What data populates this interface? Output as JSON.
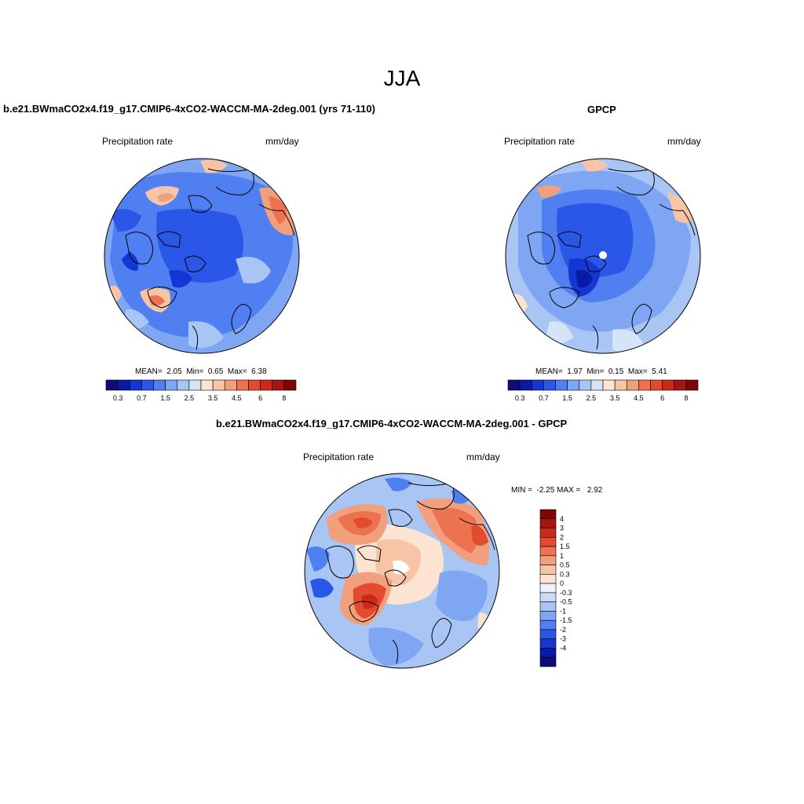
{
  "title": "JJA",
  "panels": [
    {
      "id": "model",
      "title": "b.e21.BWmaCO2x4.f19_g17.CMIP6-4xCO2-WACCM-MA-2deg.001 (yrs 71-110)",
      "left_label": "Precipitation rate",
      "right_label": "mm/day",
      "stats": {
        "mean_label": "MEAN=",
        "mean": "2.05",
        "min_label": "Min=",
        "min": "0.65",
        "max_label": "Max=",
        "max": "6.38"
      }
    },
    {
      "id": "obs",
      "title": "GPCP",
      "left_label": "Precipitation rate",
      "right_label": "mm/day",
      "stats": {
        "mean_label": "MEAN=",
        "mean": "1.97",
        "min_label": "Min=",
        "min": "0.15",
        "max_label": "Max=",
        "max": "5.41"
      }
    },
    {
      "id": "diff",
      "title": "b.e21.BWmaCO2x4.f19_g17.CMIP6-4xCO2-WACCM-MA-2deg.001 - GPCP",
      "left_label": "Precipitation rate",
      "right_label": "mm/day",
      "stats": {
        "min_label": "MIN =",
        "min": "-2.25",
        "max_label": "MAX =",
        "max": "2.92"
      }
    }
  ],
  "colorbars": {
    "abs": {
      "colors": [
        "#0d0d7a",
        "#0a1aa8",
        "#1437d4",
        "#2b57e8",
        "#4f7ff0",
        "#7fa6f2",
        "#a9c5f4",
        "#d6e4f7",
        "#fde4d2",
        "#f8c4a6",
        "#f29f7d",
        "#ed7350",
        "#e44a2e",
        "#cc2a18",
        "#a71510",
        "#800505"
      ],
      "labels": [
        "0.3",
        "0.7",
        "1.5",
        "2.5",
        "3.5",
        "4.5",
        "6",
        "8"
      ]
    },
    "diff": {
      "colors": [
        "#800505",
        "#a71510",
        "#cc2a18",
        "#e44a2e",
        "#ed7350",
        "#f29f7d",
        "#f8c4a6",
        "#fde4d2",
        "#eef3fb",
        "#c9dbf5",
        "#a9c5f4",
        "#7fa6f2",
        "#4f7ff0",
        "#2b57e8",
        "#1437d4",
        "#0a1aa8",
        "#0d0d7a"
      ],
      "labels": [
        "4",
        "3",
        "2",
        "1.5",
        "1",
        "0.5",
        "0.3",
        "0",
        "-0.3",
        "-0.5",
        "-1",
        "-1.5",
        "-2",
        "-3",
        "-4"
      ]
    }
  },
  "chart_data": [
    {
      "type": "heatmap",
      "projection": "north-polar-stereographic",
      "title": "b.e21.BWmaCO2x4.f19_g17.CMIP6-4xCO2-WACCM-MA-2deg.001 (yrs 71-110)",
      "variable": "Precipitation rate",
      "units": "mm/day",
      "mean": 2.05,
      "min": 0.65,
      "max": 6.38,
      "levels": [
        0.3,
        0.5,
        0.7,
        1,
        1.5,
        2,
        2.5,
        3,
        3.5,
        4,
        4.5,
        5,
        6,
        7,
        8
      ]
    },
    {
      "type": "heatmap",
      "projection": "north-polar-stereographic",
      "title": "GPCP",
      "variable": "Precipitation rate",
      "units": "mm/day",
      "mean": 1.97,
      "min": 0.15,
      "max": 5.41,
      "levels": [
        0.3,
        0.5,
        0.7,
        1,
        1.5,
        2,
        2.5,
        3,
        3.5,
        4,
        4.5,
        5,
        6,
        7,
        8
      ]
    },
    {
      "type": "heatmap",
      "projection": "north-polar-stereographic",
      "title": "b.e21.BWmaCO2x4.f19_g17.CMIP6-4xCO2-WACCM-MA-2deg.001 - GPCP",
      "variable": "Precipitation rate",
      "units": "mm/day",
      "min": -2.25,
      "max": 2.92,
      "levels": [
        -4,
        -3,
        -2,
        -1.5,
        -1,
        -0.5,
        -0.3,
        0,
        0.3,
        0.5,
        1,
        1.5,
        2,
        3,
        4
      ]
    }
  ]
}
